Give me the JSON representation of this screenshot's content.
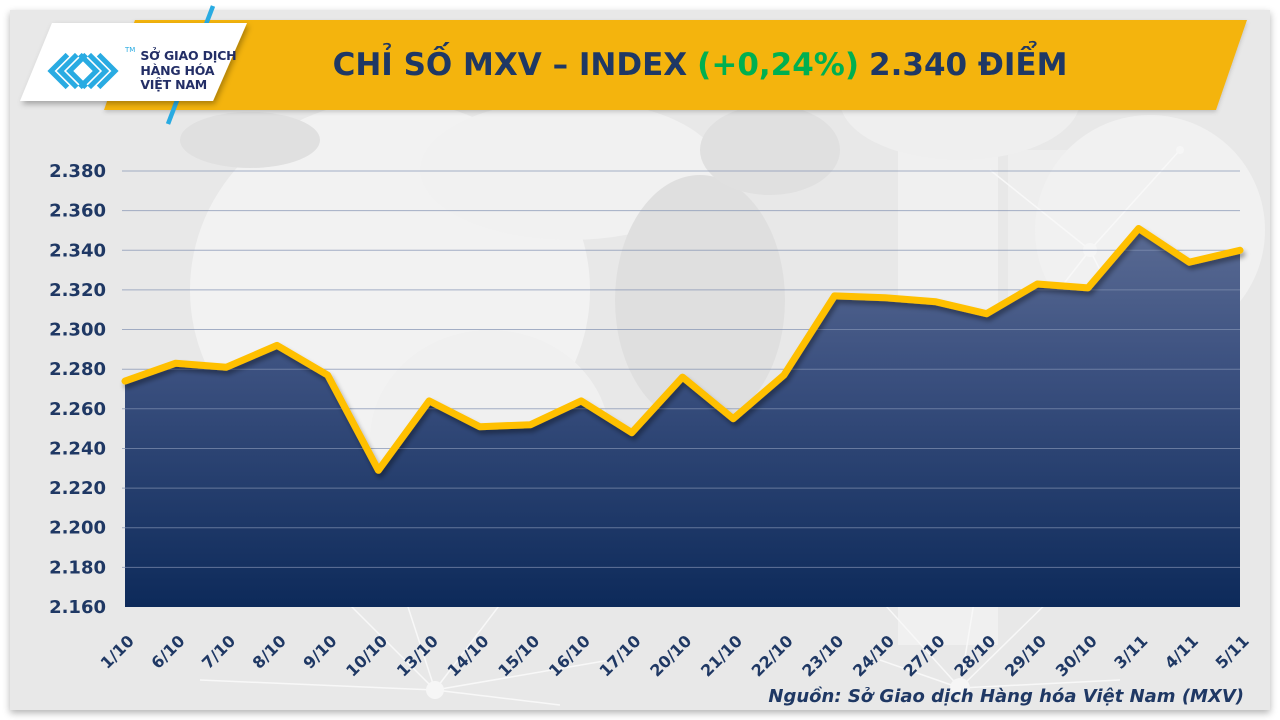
{
  "header": {
    "logo": {
      "lines": [
        "SỞ GIAO DỊCH",
        "HÀNG HÓA",
        "VIỆT NAM"
      ],
      "tm": "TM"
    },
    "title": {
      "main": "CHỈ SỐ MXV – INDEX",
      "change": "(+0,24%)",
      "value": "2.340 ĐIỂM"
    }
  },
  "colors": {
    "banner_yellow": "#F4B40D",
    "line_yellow": "#FFC000",
    "navy": "#1F3864",
    "green": "#00B050",
    "cyan": "#29ABE2",
    "logo_text_navy": "#232E66",
    "area_top": "#66759B",
    "area_mid": "#3C5180",
    "area_bottom": "#0D2A5A",
    "grid": "#8191B2"
  },
  "chart_data": {
    "type": "area",
    "title": "CHỈ SỐ MXV – INDEX (+0,24%) 2.340 ĐIỂM",
    "x": [
      "1/10",
      "6/10",
      "7/10",
      "8/10",
      "9/10",
      "10/10",
      "13/10",
      "14/10",
      "15/10",
      "16/10",
      "17/10",
      "20/10",
      "21/10",
      "22/10",
      "23/10",
      "24/10",
      "27/10",
      "28/10",
      "29/10",
      "30/10",
      "3/11",
      "4/11",
      "5/11"
    ],
    "values": [
      2274,
      2283,
      2281,
      2292,
      2277,
      2229,
      2264,
      2251,
      2252,
      2264,
      2248,
      2276,
      2255,
      2277,
      2317,
      2316,
      2314,
      2308,
      2323,
      2321,
      2351,
      2334,
      2340
    ],
    "ylim": [
      2160,
      2380
    ],
    "ytick_step": 20,
    "ytick_labels": [
      "2.160",
      "2.180",
      "2.200",
      "2.220",
      "2.240",
      "2.260",
      "2.280",
      "2.300",
      "2.320",
      "2.340",
      "2.360",
      "2.380"
    ],
    "grid": true,
    "legend": "none",
    "unit": "điểm"
  },
  "source_note": "Nguồn: Sở Giao dịch Hàng hóa Việt Nam (MXV)"
}
